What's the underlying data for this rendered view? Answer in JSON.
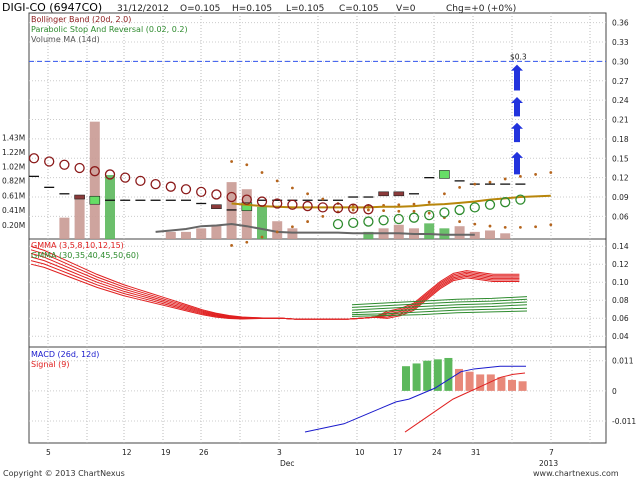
{
  "header": {
    "symbol": "DIGI-CO (6947CO)",
    "date": "31/12/2012",
    "open": "O=0.105",
    "high": "H=0.105",
    "low": "L=0.105",
    "close": "C=0.105",
    "volume": "V=0",
    "change": "Chg=+0 (+0%)"
  },
  "footer": {
    "copyright": "Copyright © 2013 ChartNexus",
    "website": "www.chartnexus.com"
  },
  "colors": {
    "bollinger": "#8b1a1a",
    "sar": "#2e8b2e",
    "volume_ma": "#666666",
    "gmma_short": "#e02020",
    "gmma_long": "#2e8b2e",
    "macd": "#1a1acc",
    "signal": "#e02020",
    "hist_pos": "#5cb85c",
    "hist_neg": "#e8897a",
    "target": "#3355ee",
    "arrows": "#2233dd"
  },
  "chart_data": [
    {
      "type": "line",
      "title": "DIGI-CO (6947CO)",
      "legend": [
        "Bollinger Band (20d, 2.0)",
        "Parabolic Stop And Reversal (0.02, 0.2)",
        "Volume MA (14d)"
      ],
      "legend_placement": "top-left",
      "grid": true,
      "y_ticks": [
        "0.36",
        "0.33",
        "0.30",
        "0.27",
        "0.24",
        "0.21",
        "0.18",
        "0.15",
        "0.12",
        "0.09",
        "0.06"
      ],
      "volume_ticks": [
        "1.43M",
        "1.22M",
        "1.02M",
        "0.82M",
        "0.61M",
        "0.41M",
        "0.20M"
      ],
      "target_label": "$0.3",
      "ylim": [
        0.025,
        0.375
      ],
      "volume_max": 1.8,
      "price_bars": [
        {
          "d": 0,
          "p": 0.122
        },
        {
          "d": 1,
          "p": 0.105
        },
        {
          "d": 2,
          "p": 0.095
        },
        {
          "d": 3,
          "p": 0.09,
          "box": "dark"
        },
        {
          "d": 4,
          "p": 0.085,
          "box": "green"
        },
        {
          "d": 5,
          "p": 0.085
        },
        {
          "d": 6,
          "p": 0.085
        },
        {
          "d": 7,
          "p": 0.085
        },
        {
          "d": 8,
          "p": 0.085
        },
        {
          "d": 9,
          "p": 0.085
        },
        {
          "d": 10,
          "p": 0.085
        },
        {
          "d": 11,
          "p": 0.08
        },
        {
          "d": 12,
          "p": 0.075,
          "box": "dark"
        },
        {
          "d": 13,
          "p": 0.07
        },
        {
          "d": 14,
          "p": 0.075,
          "box": "green"
        },
        {
          "d": 15,
          "p": 0.085
        },
        {
          "d": 16,
          "p": 0.085
        },
        {
          "d": 17,
          "p": 0.085
        },
        {
          "d": 18,
          "p": 0.085
        },
        {
          "d": 19,
          "p": 0.085
        },
        {
          "d": 20,
          "p": 0.085
        },
        {
          "d": 21,
          "p": 0.09
        },
        {
          "d": 22,
          "p": 0.09
        },
        {
          "d": 23,
          "p": 0.095,
          "box": "dark"
        },
        {
          "d": 24,
          "p": 0.095,
          "box": "dark"
        },
        {
          "d": 25,
          "p": 0.095
        },
        {
          "d": 26,
          "p": 0.12
        },
        {
          "d": 27,
          "p": 0.125,
          "box": "green"
        },
        {
          "d": 28,
          "p": 0.115
        },
        {
          "d": 29,
          "p": 0.11
        },
        {
          "d": 30,
          "p": 0.11
        },
        {
          "d": 31,
          "p": 0.11
        },
        {
          "d": 32,
          "p": 0.11
        }
      ],
      "volume": [
        0,
        0,
        0.3,
        0.6,
        1.65,
        0.9,
        0,
        0,
        0,
        0.1,
        0.1,
        0.15,
        0.2,
        0.8,
        0.7,
        0.45,
        0.25,
        0.15,
        0,
        0,
        0,
        0,
        0.1,
        0.15,
        0.2,
        0.15,
        0.22,
        0.15,
        0.18,
        0.1,
        0.12,
        0.08,
        0
      ],
      "volume_colors": [
        "neg",
        "neg",
        "neg",
        "neg",
        "neg",
        "pos",
        "neg",
        "neg",
        "neg",
        "neg",
        "neg",
        "neg",
        "neg",
        "neg",
        "neg",
        "pos",
        "neg",
        "neg",
        "neg",
        "neg",
        "neg",
        "neg",
        "pos",
        "neg",
        "neg",
        "neg",
        "pos",
        "pos",
        "neg",
        "neg",
        "neg",
        "neg",
        "neg"
      ],
      "sar_upper": [
        0.15,
        0.145,
        0.14,
        0.135,
        0.13,
        0.125,
        0.12,
        0.115,
        0.11,
        0.106,
        0.102,
        0.098,
        0.094,
        0.09,
        0.086,
        0.083,
        0.08,
        0.078,
        0.076,
        0.074,
        0.073,
        0.072,
        0.071
      ],
      "sar_lower": [
        0.048,
        0.05,
        0.052,
        0.054,
        0.056,
        0.058,
        0.062,
        0.066,
        0.07,
        0.074,
        0.078,
        0.082,
        0.086
      ],
      "bb_upper": [
        0.145,
        0.14,
        0.128,
        0.115,
        0.104,
        0.095,
        0.087,
        0.08,
        0.077,
        0.077,
        0.077,
        0.078,
        0.079,
        0.082,
        0.095,
        0.105,
        0.11,
        0.113,
        0.118,
        0.122,
        0.125,
        0.128
      ],
      "bb_middle": [
        0.08,
        0.078,
        0.076,
        0.075,
        0.074,
        0.074,
        0.074,
        0.074,
        0.074,
        0.074,
        0.075,
        0.075,
        0.076,
        0.078,
        0.079,
        0.081,
        0.083,
        0.086,
        0.088,
        0.09,
        0.091,
        0.092
      ],
      "bb_lower": [
        0.015,
        0.02,
        0.028,
        0.036,
        0.044,
        0.052,
        0.06,
        0.067,
        0.07,
        0.07,
        0.069,
        0.068,
        0.068,
        0.065,
        0.058,
        0.052,
        0.048,
        0.045,
        0.043,
        0.043,
        0.044,
        0.047
      ],
      "volume_ma": [
        0.1,
        0.12,
        0.14,
        0.18,
        0.19,
        0.21,
        0.18,
        0.14,
        0.1,
        0.09,
        0.09,
        0.09,
        0.09,
        0.08,
        0.08,
        0.08,
        0.08,
        0.07,
        0.07,
        0.06,
        0.06,
        0.06
      ]
    },
    {
      "type": "line",
      "title": "",
      "legend": [
        "GMMA (3,5,8,10,12,15)",
        "GMMA (30,35,40,45,50,60)"
      ],
      "legend_placement": "top-left",
      "grid": true,
      "y_ticks": [
        "0.14",
        "0.12",
        "0.10",
        "0.08",
        "0.06",
        "0.04"
      ],
      "ylim": [
        0.028,
        0.148
      ],
      "short_base": [
        0.128,
        0.124,
        0.118,
        0.112,
        0.106,
        0.1,
        0.095,
        0.09,
        0.086,
        0.082,
        0.078,
        0.074,
        0.07,
        0.066,
        0.063,
        0.061,
        0.06,
        0.06,
        0.06,
        0.06,
        0.059,
        0.059,
        0.059,
        0.059,
        0.059,
        0.06,
        0.061,
        0.063,
        0.066,
        0.072,
        0.084,
        0.096,
        0.105,
        0.108,
        0.106,
        0.104,
        0.104,
        0.104
      ],
      "short_offsets": [
        0.012,
        0.008,
        0.004,
        0.0,
        -0.004,
        -0.008
      ],
      "long_values": [
        [
          0.062,
          0.064,
          0.066,
          0.069,
          0.072,
          0.075
        ],
        [
          0.063,
          0.065,
          0.068,
          0.071,
          0.074,
          0.077
        ],
        [
          0.064,
          0.067,
          0.07,
          0.073,
          0.076,
          0.079
        ],
        [
          0.066,
          0.069,
          0.072,
          0.075,
          0.078,
          0.081
        ],
        [
          0.067,
          0.07,
          0.073,
          0.076,
          0.079,
          0.082
        ],
        [
          0.068,
          0.071,
          0.075,
          0.078,
          0.081,
          0.084
        ]
      ]
    },
    {
      "type": "bar",
      "title": "",
      "legend": [
        "MACD (26d, 12d)",
        "Signal (9)"
      ],
      "legend_placement": "top-left",
      "grid": true,
      "y_ticks": [
        "0.011",
        "0",
        "-0.011"
      ],
      "ylim": [
        -0.019,
        0.016
      ],
      "macd": [
        -0.015,
        -0.014,
        -0.013,
        -0.012,
        -0.01,
        -0.008,
        -0.006,
        -0.004,
        -0.003,
        -0.001,
        0.001,
        0.004,
        0.007,
        0.008,
        0.0085,
        0.009,
        0.009,
        0.009
      ],
      "signal": [
        -0.015,
        -0.012,
        -0.009,
        -0.006,
        -0.003,
        -0.001,
        0.001,
        0.003,
        0.005,
        0.006,
        0.0065
      ],
      "histogram": [
        0.009,
        0.01,
        0.011,
        0.0115,
        0.012,
        0.008,
        0.007,
        0.006,
        0.006,
        0.005,
        0.004,
        0.0035
      ]
    },
    {
      "type": "line",
      "title": "",
      "x_ticks": [
        "5",
        "12",
        "19",
        "26",
        "3",
        "10",
        "17",
        "24",
        "31",
        "7"
      ],
      "x_ticks_faded": [
        "",
        "",
        "",
        "",
        "",
        "",
        "",
        "",
        "",
        "7"
      ],
      "x_sublabels": [
        "Dec",
        "2013"
      ]
    }
  ]
}
